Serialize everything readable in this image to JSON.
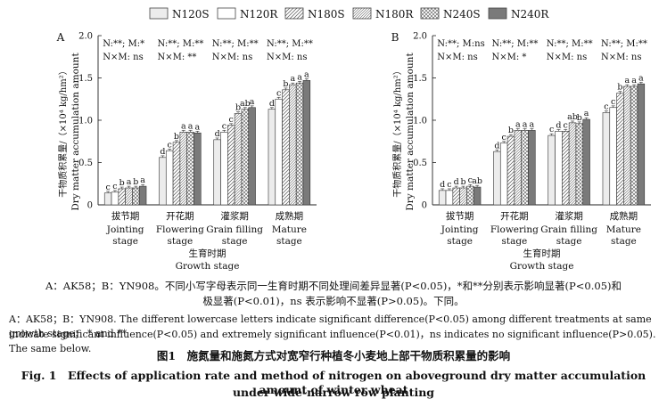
{
  "legend": [
    "N120S",
    "N120R",
    "N180S",
    "N180R",
    "N240S",
    "N240R"
  ],
  "series_colors": [
    "#ececec",
    "#ffffff",
    "#ffffff",
    "#ffffff",
    "#ffffff",
    "#7a7a7a"
  ],
  "series_patterns": [
    "solid",
    "white",
    "diag",
    "diag-dense",
    "cross",
    "solid-dark"
  ],
  "chart_data": [
    {
      "type": "bar",
      "panel": "A",
      "ylabel_cn": "干物质积累量/（×10⁴ kg/hm²）",
      "ylabel_en": "Dry matter accumulation amount",
      "xlabel_cn": "生育时期",
      "xlabel_en": "Growth stage",
      "ylim": [
        0,
        2.0
      ],
      "yticks": [
        "0",
        "0.5",
        "1.0",
        "1.5",
        "2.0"
      ],
      "categories_cn": [
        "拔节期",
        "开花期",
        "灌浆期",
        "成熟期"
      ],
      "categories_en": [
        [
          "Jointing",
          "stage"
        ],
        [
          "Flowering",
          "stage"
        ],
        [
          "Grain filling",
          "stage"
        ],
        [
          "Mature",
          "stage"
        ]
      ],
      "significance": [
        [
          "N:**; M:*",
          "N×M: ns"
        ],
        [
          "N:**; M:**",
          "N×M: **"
        ],
        [
          "N:**; M:**",
          "N×M: ns"
        ],
        [
          "N:**; M:**",
          "N×M: ns"
        ]
      ],
      "series": [
        {
          "name": "N120S",
          "values": [
            0.14,
            0.56,
            0.77,
            1.13
          ],
          "letters": [
            "c",
            "d",
            "d",
            "d"
          ]
        },
        {
          "name": "N120R",
          "values": [
            0.15,
            0.64,
            0.86,
            1.25
          ],
          "letters": [
            "c",
            "c",
            "c",
            "c"
          ]
        },
        {
          "name": "N180S",
          "values": [
            0.19,
            0.74,
            0.94,
            1.36
          ],
          "letters": [
            "b",
            "b",
            "c",
            "b"
          ]
        },
        {
          "name": "N180R",
          "values": [
            0.2,
            0.86,
            1.08,
            1.42
          ],
          "letters": [
            "a",
            "a",
            "b",
            "a"
          ]
        },
        {
          "name": "N240S",
          "values": [
            0.2,
            0.86,
            1.13,
            1.44
          ],
          "letters": [
            "b",
            "a",
            "ab",
            "a"
          ]
        },
        {
          "name": "N240R",
          "values": [
            0.22,
            0.85,
            1.15,
            1.47
          ],
          "letters": [
            "a",
            "a",
            "a",
            "a"
          ]
        }
      ]
    },
    {
      "type": "bar",
      "panel": "B",
      "ylabel_cn": "干物质积累量/（×10⁴ kg/hm²）",
      "ylabel_en": "Dry matter accumulation amount",
      "xlabel_cn": "生育时期",
      "xlabel_en": "Growth stage",
      "ylim": [
        0,
        2.0
      ],
      "yticks": [
        "0",
        "0.5",
        "1.0",
        "1.5",
        "2.0"
      ],
      "categories_cn": [
        "拔节期",
        "开花期",
        "灌浆期",
        "成熟期"
      ],
      "categories_en": [
        [
          "Jointing",
          "stage"
        ],
        [
          "Flowering",
          "stage"
        ],
        [
          "Grain filling",
          "stage"
        ],
        [
          "Mature",
          "stage"
        ]
      ],
      "significance": [
        [
          "N:**; M:ns",
          "N×M: ns"
        ],
        [
          "N:**; M:**",
          "N×M: *"
        ],
        [
          "N:**; M:**",
          "N×M: ns"
        ],
        [
          "N:**; M:**",
          "N×M: ns"
        ]
      ],
      "series": [
        {
          "name": "N120S",
          "values": [
            0.17,
            0.63,
            0.82,
            1.09
          ],
          "letters": [
            "d",
            "d",
            "c",
            "c"
          ]
        },
        {
          "name": "N120R",
          "values": [
            0.17,
            0.73,
            0.87,
            1.15
          ],
          "letters": [
            "c",
            "c",
            "d",
            "c"
          ]
        },
        {
          "name": "N180S",
          "values": [
            0.2,
            0.81,
            0.87,
            1.32
          ],
          "letters": [
            "d",
            "b",
            "c",
            "b"
          ]
        },
        {
          "name": "N180R",
          "values": [
            0.2,
            0.88,
            0.97,
            1.4
          ],
          "letters": [
            "b",
            "a",
            "ab",
            "a"
          ]
        },
        {
          "name": "N240S",
          "values": [
            0.22,
            0.88,
            0.96,
            1.4
          ],
          "letters": [
            "c",
            "a",
            "b",
            "a"
          ]
        },
        {
          "name": "N240R",
          "values": [
            0.21,
            0.88,
            1.01,
            1.43
          ],
          "letters": [
            "ab",
            "a",
            "a",
            "a"
          ]
        }
      ]
    }
  ],
  "caption": {
    "line1": "A：AK58；B：YN908。不同小写字母表示同一生育时期不同处理间差异显著(P<0.05)，*和**分别表示影响显著(P<0.05)和",
    "line2": "极显著(P<0.01)，ns 表示影响不显著(P>0.05)。下同。",
    "line3": "A：AK58；B：YN908. The different lowercase letters indicate significant difference(P<0.05) among different treatments at same growth stage； * and **",
    "line4": "indicate significant influence(P<0.05) and extremely significant influence(P<0.01)，ns indicates no significant influence(P>0.05). The same below.",
    "title_cn": "图1　施氮量和施氮方式对宽窄行种植冬小麦地上部干物质积累量的影响",
    "title_en_1": "Fig. 1　Effects of application rate and method of nitrogen on aboveground dry matter accumulation amount of winter wheat",
    "title_en_2": "under wide-narrow row planting"
  }
}
